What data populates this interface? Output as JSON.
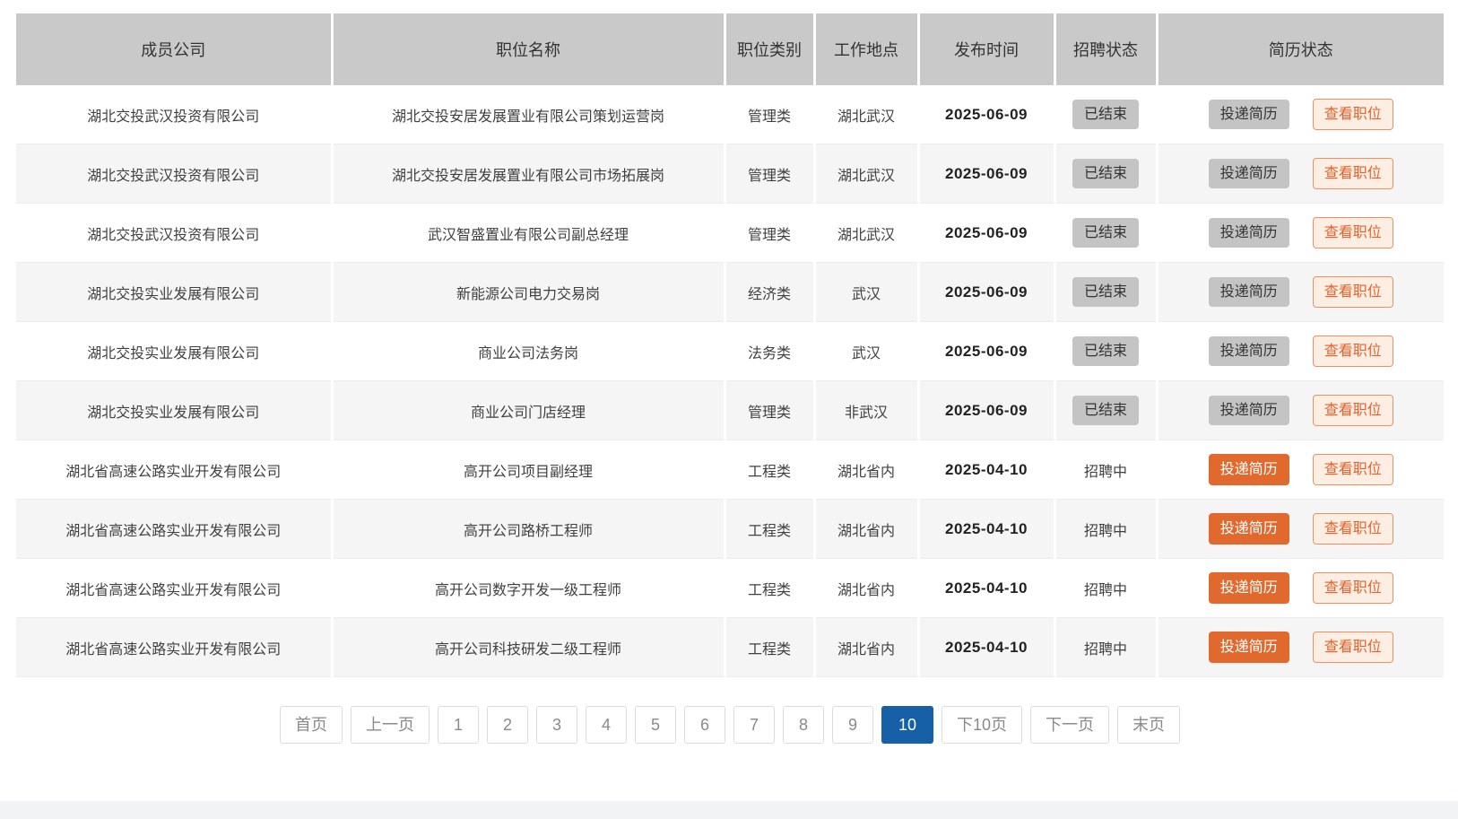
{
  "table": {
    "columns": [
      {
        "key": "company",
        "label": "成员公司"
      },
      {
        "key": "position",
        "label": "职位名称"
      },
      {
        "key": "category",
        "label": "职位类别"
      },
      {
        "key": "location",
        "label": "工作地点"
      },
      {
        "key": "publish-date",
        "label": "发布时间"
      },
      {
        "key": "recruit-status",
        "label": "招聘状态"
      },
      {
        "key": "resume-status",
        "label": "简历状态"
      }
    ],
    "buttons": {
      "apply_label": "投递简历",
      "view_label": "查看职位"
    },
    "rows": [
      {
        "company": "湖北交投武汉投资有限公司",
        "position": "湖北交投安居发展置业有限公司策划运营岗",
        "category": "管理类",
        "location": "湖北武汉",
        "publish_date": "2025-06-09",
        "recruit_status": "已结束",
        "recruit_badge": true,
        "apply_enabled": false
      },
      {
        "company": "湖北交投武汉投资有限公司",
        "position": "湖北交投安居发展置业有限公司市场拓展岗",
        "category": "管理类",
        "location": "湖北武汉",
        "publish_date": "2025-06-09",
        "recruit_status": "已结束",
        "recruit_badge": true,
        "apply_enabled": false
      },
      {
        "company": "湖北交投武汉投资有限公司",
        "position": "武汉智盛置业有限公司副总经理",
        "category": "管理类",
        "location": "湖北武汉",
        "publish_date": "2025-06-09",
        "recruit_status": "已结束",
        "recruit_badge": true,
        "apply_enabled": false
      },
      {
        "company": "湖北交投实业发展有限公司",
        "position": "新能源公司电力交易岗",
        "category": "经济类",
        "location": "武汉",
        "publish_date": "2025-06-09",
        "recruit_status": "已结束",
        "recruit_badge": true,
        "apply_enabled": false
      },
      {
        "company": "湖北交投实业发展有限公司",
        "position": "商业公司法务岗",
        "category": "法务类",
        "location": "武汉",
        "publish_date": "2025-06-09",
        "recruit_status": "已结束",
        "recruit_badge": true,
        "apply_enabled": false
      },
      {
        "company": "湖北交投实业发展有限公司",
        "position": "商业公司门店经理",
        "category": "管理类",
        "location": "非武汉",
        "publish_date": "2025-06-09",
        "recruit_status": "已结束",
        "recruit_badge": true,
        "apply_enabled": false
      },
      {
        "company": "湖北省高速公路实业开发有限公司",
        "position": "高开公司项目副经理",
        "category": "工程类",
        "location": "湖北省内",
        "publish_date": "2025-04-10",
        "recruit_status": "招聘中",
        "recruit_badge": false,
        "apply_enabled": true
      },
      {
        "company": "湖北省高速公路实业开发有限公司",
        "position": "高开公司路桥工程师",
        "category": "工程类",
        "location": "湖北省内",
        "publish_date": "2025-04-10",
        "recruit_status": "招聘中",
        "recruit_badge": false,
        "apply_enabled": true
      },
      {
        "company": "湖北省高速公路实业开发有限公司",
        "position": "高开公司数字开发一级工程师",
        "category": "工程类",
        "location": "湖北省内",
        "publish_date": "2025-04-10",
        "recruit_status": "招聘中",
        "recruit_badge": false,
        "apply_enabled": true
      },
      {
        "company": "湖北省高速公路实业开发有限公司",
        "position": "高开公司科技研发二级工程师",
        "category": "工程类",
        "location": "湖北省内",
        "publish_date": "2025-04-10",
        "recruit_status": "招聘中",
        "recruit_badge": false,
        "apply_enabled": true
      }
    ]
  },
  "pagination": {
    "items": [
      {
        "name": "first",
        "label": "首页",
        "active": false
      },
      {
        "name": "prev",
        "label": "上一页",
        "active": false
      },
      {
        "name": "page-1",
        "label": "1",
        "active": false
      },
      {
        "name": "page-2",
        "label": "2",
        "active": false
      },
      {
        "name": "page-3",
        "label": "3",
        "active": false
      },
      {
        "name": "page-4",
        "label": "4",
        "active": false
      },
      {
        "name": "page-5",
        "label": "5",
        "active": false
      },
      {
        "name": "page-6",
        "label": "6",
        "active": false
      },
      {
        "name": "page-7",
        "label": "7",
        "active": false
      },
      {
        "name": "page-8",
        "label": "8",
        "active": false
      },
      {
        "name": "page-9",
        "label": "9",
        "active": false
      },
      {
        "name": "page-10",
        "label": "10",
        "active": true
      },
      {
        "name": "next-10",
        "label": "下10页",
        "active": false
      },
      {
        "name": "next",
        "label": "下一页",
        "active": false
      },
      {
        "name": "last",
        "label": "末页",
        "active": false
      }
    ]
  },
  "colors": {
    "header_bg": "#c9c9c9",
    "row_alt_bg": "#f5f5f5",
    "badge_gray_bg": "#c4c4c4",
    "accent_orange": "#e2692e",
    "outline_button_bg": "#fdeee3",
    "outline_button_border": "#ea9164",
    "active_page_bg": "#1660a8",
    "footer_bg": "#f2f3f5"
  }
}
